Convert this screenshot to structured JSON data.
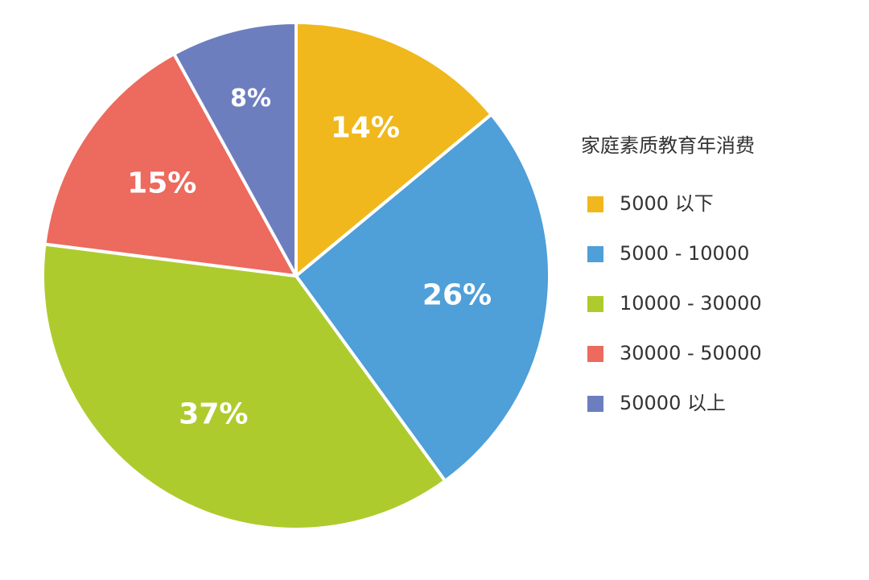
{
  "chart_data": {
    "type": "pie",
    "legend_title": "家庭素质教育年消费",
    "categories": [
      "5000 以下",
      "5000 - 10000",
      "10000 - 30000",
      "30000 - 50000",
      "50000 以上"
    ],
    "values": [
      14,
      26,
      37,
      15,
      8
    ],
    "value_labels": [
      "14%",
      "26%",
      "37%",
      "15%",
      "8%"
    ],
    "colors": [
      "#f0b81c",
      "#4f9fd8",
      "#aecb2e",
      "#ec6a5e",
      "#6d7ebf"
    ]
  }
}
